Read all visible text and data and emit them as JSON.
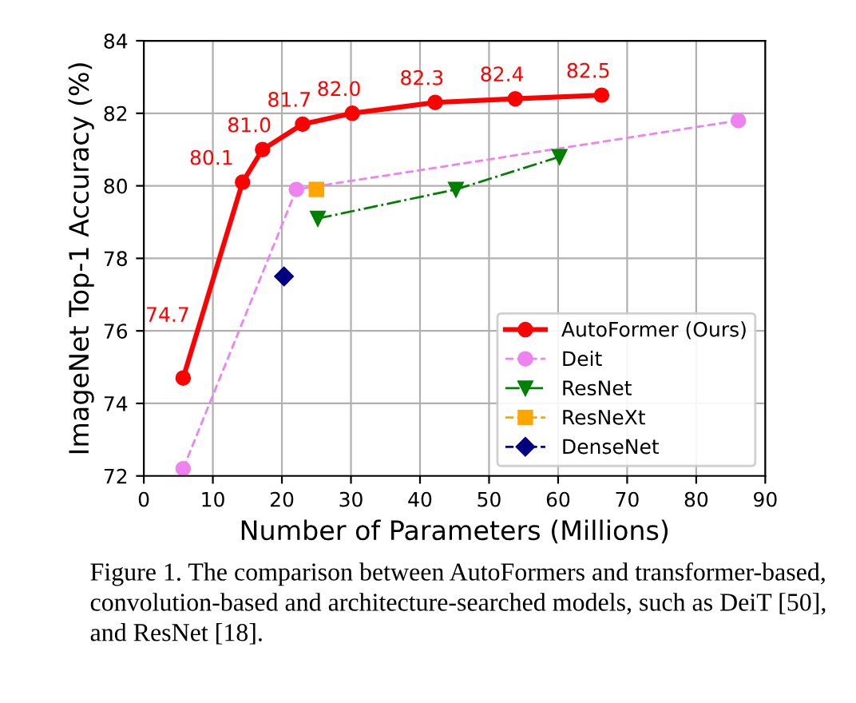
{
  "chart_data": {
    "type": "line",
    "xlabel": "Number of Parameters (Millions)",
    "ylabel": "ImageNet Top-1 Accuracy (%)",
    "xlim": [
      0,
      90
    ],
    "xticks": [
      0,
      10,
      20,
      30,
      40,
      50,
      60,
      70,
      80,
      90
    ],
    "ylim": [
      72,
      84
    ],
    "yticks": [
      72,
      74,
      76,
      78,
      80,
      82,
      84
    ],
    "grid": true,
    "legend": "bottom right",
    "series": [
      {
        "name": "AutoFormer (Ours)",
        "color": "#ff0000",
        "marker": "circle",
        "line_style": "solid",
        "x": [
          5.7,
          14.3,
          17.2,
          23,
          30.2,
          42.2,
          53.8,
          66.3
        ],
        "values": [
          74.7,
          80.1,
          81.0,
          81.7,
          82.0,
          82.3,
          82.4,
          82.5
        ],
        "value_labels": [
          "74.7",
          "80.1",
          "81.0",
          "81.7",
          "82.0",
          "82.3",
          "82.4",
          "82.5"
        ]
      },
      {
        "name": "Deit",
        "color": "#ee82ee",
        "marker": "circle",
        "line_style": "dashed",
        "x": [
          5.7,
          22.1,
          86.1
        ],
        "values": [
          72.2,
          79.9,
          81.8
        ]
      },
      {
        "name": "ResNet",
        "color": "#008000",
        "marker": "triangle-down",
        "line_style": "dashdot",
        "x": [
          25.2,
          45.2,
          60.2
        ],
        "values": [
          79.1,
          79.9,
          80.8
        ]
      },
      {
        "name": "ResNeXt",
        "color": "#ffa500",
        "marker": "square",
        "line_style": "dashed",
        "x": [
          25
        ],
        "values": [
          79.9
        ]
      },
      {
        "name": "DenseNet",
        "color": "#000080",
        "marker": "diamond",
        "line_style": "dashed",
        "x": [
          20.3
        ],
        "values": [
          77.5
        ]
      }
    ],
    "annotations": [
      "Figure 1. The comparison between AutoFormers and transformer-based, convolution-based and architecture-searched models, such as DeiT [50], and ResNet [18]."
    ]
  }
}
